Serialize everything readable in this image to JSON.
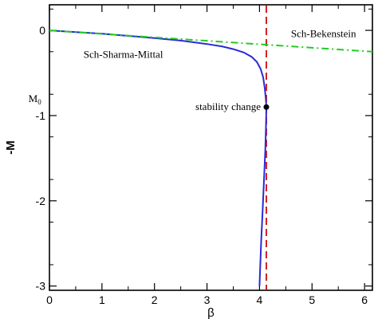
{
  "chart_data": {
    "type": "line",
    "xlabel": "β",
    "ylabel": "-M",
    "xlim": [
      0,
      6.15
    ],
    "ylim": [
      -3.05,
      0.3
    ],
    "x_ticks": [
      0,
      1,
      2,
      3,
      4,
      5,
      6
    ],
    "y_ticks": [
      0,
      -1,
      -2,
      -3
    ],
    "x_tick_labels": [
      "0",
      "1",
      "2",
      "3",
      "4",
      "5",
      "6"
    ],
    "y_tick_labels": [
      "0",
      "-1",
      "-2",
      "-3"
    ],
    "grid": false,
    "series": [
      {
        "name": "Sch-Sharma-Mittal",
        "color": "#2a2ad8",
        "style": "solid",
        "points": [
          [
            0.0,
            0.0
          ],
          [
            0.5,
            -0.02
          ],
          [
            1.0,
            -0.04
          ],
          [
            1.5,
            -0.065
          ],
          [
            2.0,
            -0.09
          ],
          [
            2.5,
            -0.12
          ],
          [
            3.0,
            -0.16
          ],
          [
            3.3,
            -0.19
          ],
          [
            3.5,
            -0.22
          ],
          [
            3.7,
            -0.26
          ],
          [
            3.85,
            -0.31
          ],
          [
            3.95,
            -0.37
          ],
          [
            4.02,
            -0.45
          ],
          [
            4.07,
            -0.55
          ],
          [
            4.1,
            -0.68
          ],
          [
            4.12,
            -0.8
          ],
          [
            4.13,
            -0.9
          ],
          [
            4.125,
            -1.1
          ],
          [
            4.11,
            -1.4
          ],
          [
            4.09,
            -1.7
          ],
          [
            4.06,
            -2.1
          ],
          [
            4.03,
            -2.5
          ],
          [
            4.0,
            -3.0
          ]
        ]
      },
      {
        "name": "Sch-Bekenstein",
        "color": "#22cc22",
        "style": "dash-dot",
        "points": [
          [
            0.0,
            0.0
          ],
          [
            6.15,
            -0.25
          ]
        ]
      }
    ],
    "vertical_lines": [
      {
        "x": 4.13,
        "color": "#d42020",
        "style": "dashed"
      }
    ],
    "markers": [
      {
        "x": 4.13,
        "y": -0.9,
        "label": "stability change"
      }
    ],
    "annotations": [
      {
        "text": "Sch-Sharma-Mittal",
        "x": 0.65,
        "y": -0.32
      },
      {
        "text": "Sch-Bekenstein",
        "x": 4.6,
        "y": -0.08
      },
      {
        "text": "M",
        "sub": "0",
        "x": -0.4,
        "y": -0.84
      }
    ]
  }
}
